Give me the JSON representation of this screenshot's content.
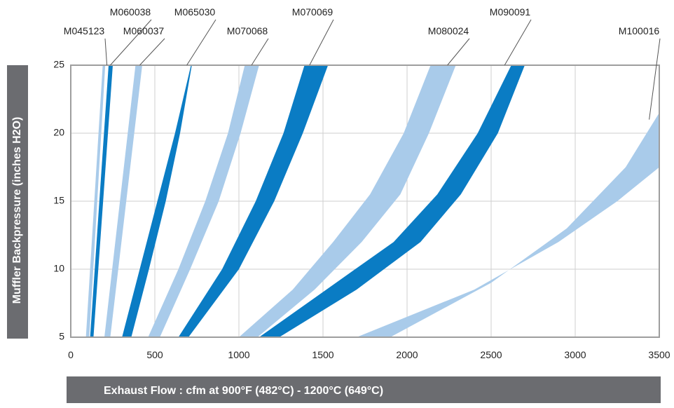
{
  "chart_data": {
    "type": "area",
    "title": "",
    "xlabel": "Exhaust Flow : cfm at 900°F (482°C) - 1200°C (649°C)",
    "ylabel": "Muffler Backpressure (inches H2O)",
    "xlim": [
      0,
      3500
    ],
    "ylim": [
      5,
      25
    ],
    "x_ticks": [
      "0",
      "500",
      "1000",
      "1500",
      "2000",
      "2500",
      "3000",
      "3500"
    ],
    "y_ticks": [
      "5",
      "10",
      "15",
      "20",
      "25"
    ],
    "grid": true,
    "colors": {
      "light": "#a9cbea",
      "dark": "#0a7cc4",
      "grid": "#cfcfcf",
      "frame": "#9e9e9e",
      "title_bar": "#6b6c70"
    },
    "series": [
      {
        "name": "M045123",
        "style": "light",
        "left": [
          [
            90,
            5
          ],
          [
            190,
            25
          ]
        ],
        "right": [
          [
            110,
            5
          ],
          [
            205,
            25
          ]
        ]
      },
      {
        "name": "M060038",
        "style": "dark",
        "left": [
          [
            115,
            5
          ],
          [
            225,
            25
          ]
        ],
        "right": [
          [
            135,
            5
          ],
          [
            250,
            25
          ]
        ]
      },
      {
        "name": "M060037",
        "style": "light",
        "left": [
          [
            200,
            5
          ],
          [
            385,
            25
          ]
        ],
        "right": [
          [
            235,
            5
          ],
          [
            425,
            25
          ]
        ]
      },
      {
        "name": "M065030",
        "style": "dark",
        "left": [
          [
            305,
            5
          ],
          [
            410,
            10
          ],
          [
            515,
            15
          ],
          [
            620,
            20
          ],
          [
            715,
            25
          ]
        ],
        "right": [
          [
            360,
            5
          ],
          [
            465,
            10
          ],
          [
            565,
            15
          ],
          [
            650,
            20
          ],
          [
            720,
            25
          ]
        ]
      },
      {
        "name": "M070068",
        "style": "light",
        "left": [
          [
            460,
            5
          ],
          [
            640,
            10
          ],
          [
            800,
            15
          ],
          [
            935,
            20
          ],
          [
            1035,
            25
          ]
        ],
        "right": [
          [
            530,
            5
          ],
          [
            710,
            10
          ],
          [
            880,
            15
          ],
          [
            1010,
            20
          ],
          [
            1120,
            25
          ]
        ]
      },
      {
        "name": "M070069",
        "style": "dark",
        "left": [
          [
            640,
            5
          ],
          [
            900,
            10
          ],
          [
            1100,
            15
          ],
          [
            1265,
            20
          ],
          [
            1390,
            25
          ]
        ],
        "right": [
          [
            700,
            5
          ],
          [
            1000,
            10
          ],
          [
            1210,
            15
          ],
          [
            1380,
            20
          ],
          [
            1530,
            25
          ]
        ]
      },
      {
        "name": "M080024",
        "style": "light",
        "left": [
          [
            1000,
            5
          ],
          [
            1320,
            8.5
          ],
          [
            1560,
            12
          ],
          [
            1780,
            15.5
          ],
          [
            1980,
            20
          ],
          [
            2140,
            25
          ]
        ],
        "right": [
          [
            1110,
            5
          ],
          [
            1450,
            8.5
          ],
          [
            1730,
            12
          ],
          [
            1960,
            15.5
          ],
          [
            2130,
            20
          ],
          [
            2290,
            25
          ]
        ]
      },
      {
        "name": "M090091",
        "style": "dark",
        "left": [
          [
            1120,
            5
          ],
          [
            1520,
            8.5
          ],
          [
            1920,
            12
          ],
          [
            2180,
            15.5
          ],
          [
            2420,
            20
          ],
          [
            2620,
            25
          ]
        ],
        "right": [
          [
            1240,
            5
          ],
          [
            1700,
            8.5
          ],
          [
            2080,
            12
          ],
          [
            2320,
            15.5
          ],
          [
            2540,
            20
          ],
          [
            2700,
            25
          ]
        ]
      },
      {
        "name": "M100016",
        "style": "light",
        "left": [
          [
            1700,
            5
          ],
          [
            2400,
            8.5
          ],
          [
            2900,
            12
          ],
          [
            3250,
            15
          ],
          [
            3500,
            17.5
          ]
        ],
        "right": [
          [
            1900,
            5
          ],
          [
            2500,
            9
          ],
          [
            2950,
            13
          ],
          [
            3300,
            17.5
          ],
          [
            3500,
            21.5
          ]
        ]
      }
    ],
    "labels": [
      {
        "name": "M045123",
        "text": "M045123",
        "lx": 120,
        "ly": 49,
        "x": 215,
        "y": 25
      },
      {
        "name": "M060038",
        "text": "M060038",
        "lx": 186,
        "ly": 22,
        "x": 235,
        "y": 25
      },
      {
        "name": "M060037",
        "text": "M060037",
        "lx": 205,
        "ly": 49,
        "x": 410,
        "y": 25
      },
      {
        "name": "M065030",
        "text": "M065030",
        "lx": 278,
        "ly": 22,
        "x": 690,
        "y": 25
      },
      {
        "name": "M070068",
        "text": "M070068",
        "lx": 353,
        "ly": 49,
        "x": 1075,
        "y": 25
      },
      {
        "name": "M070069",
        "text": "M070069",
        "lx": 446,
        "ly": 22,
        "x": 1420,
        "y": 25
      },
      {
        "name": "M080024",
        "text": "M080024",
        "lx": 640,
        "ly": 49,
        "x": 2240,
        "y": 25
      },
      {
        "name": "M090091",
        "text": "M090091",
        "lx": 728,
        "ly": 22,
        "x": 2580,
        "y": 25
      },
      {
        "name": "M100016",
        "text": "M100016",
        "lx": 912,
        "ly": 49,
        "x": 3440,
        "y": 21
      }
    ]
  }
}
